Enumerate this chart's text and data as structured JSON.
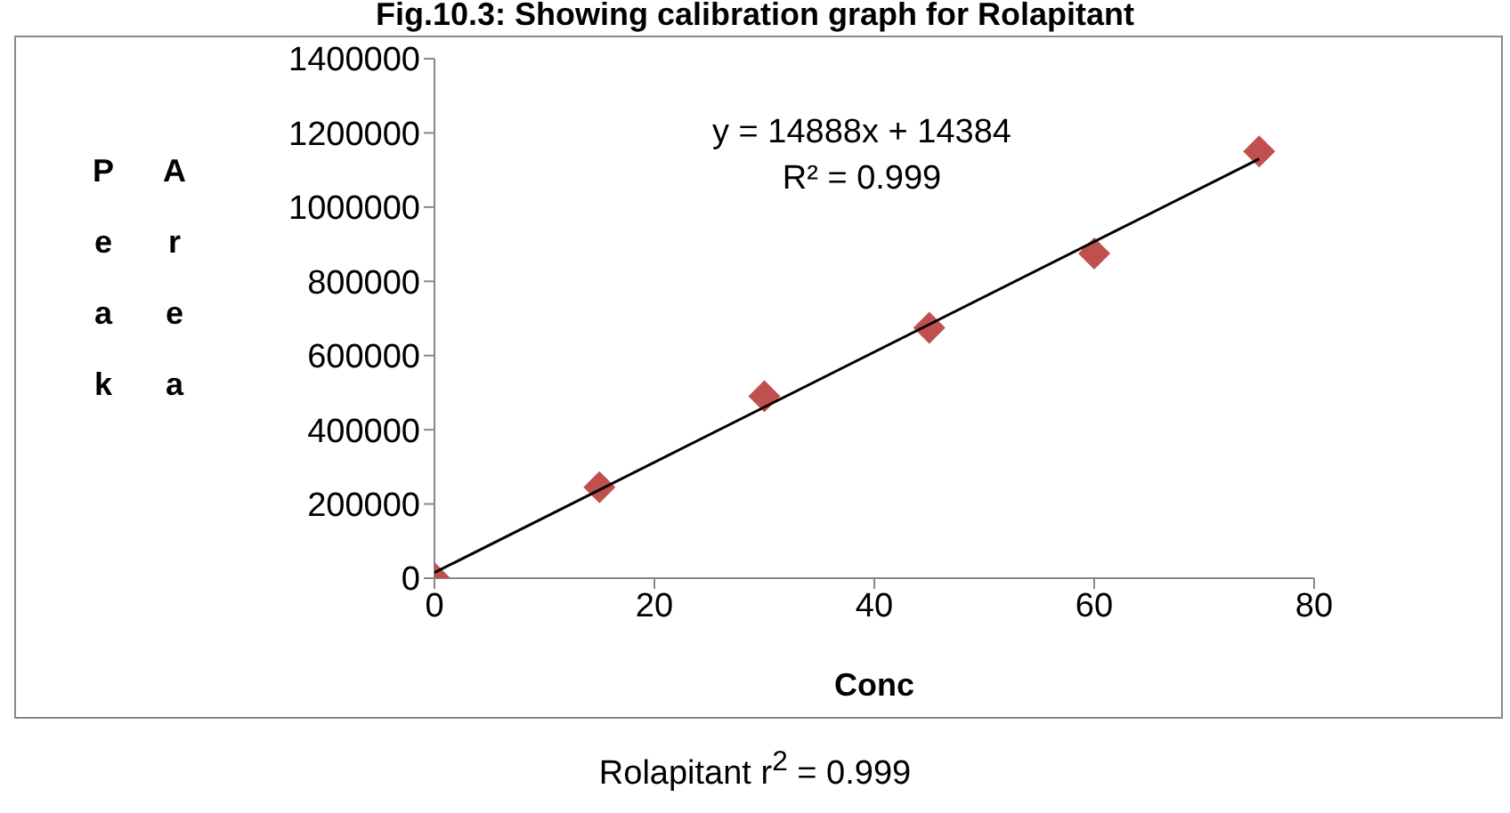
{
  "chart_data": {
    "type": "scatter",
    "title": "Fig.10.3: Showing calibration graph for Rolapitant",
    "xlabel": "Conc",
    "ylabel": "Peak Area",
    "x": [
      0,
      15,
      30,
      45,
      60,
      75
    ],
    "series": [
      {
        "color": "#c0504d",
        "values": [
          0,
          245000,
          490000,
          675000,
          875000,
          1150000
        ],
        "marker": "diamond"
      },
      {
        "type": "line",
        "color": "#000000",
        "x": [
          0,
          75
        ],
        "values": [
          15000,
          1130000
        ],
        "marker": "none"
      }
    ],
    "xlim": [
      0,
      80
    ],
    "xticks": [
      0,
      20,
      40,
      60,
      80
    ],
    "ylim": [
      0,
      1400000
    ],
    "yticks": [
      0,
      200000,
      400000,
      600000,
      800000,
      1000000,
      1200000,
      1400000
    ],
    "grid": false,
    "legend": false,
    "annotations": [
      "y = 14888x + 14384",
      "R² = 0.999",
      "Rolapitant r$^{2}$ = 0.999"
    ]
  }
}
